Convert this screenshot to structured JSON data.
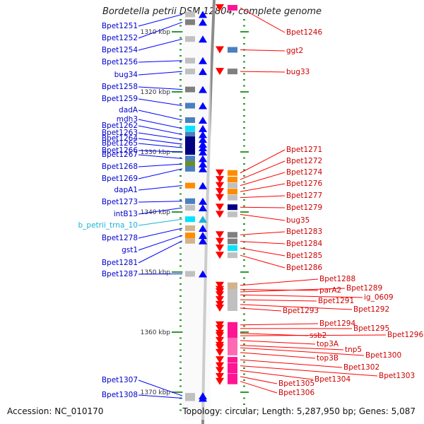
{
  "title": "Bordetella petrii DSM 12804, complete genome",
  "footer": {
    "accession": "Accession: NC_010170",
    "summary": "Topology: circular; Length: 5,287,950 bp; Genes: 5,087"
  },
  "colors": {
    "forward_gene": "#0000ff",
    "reverse_gene": "#ff0000",
    "trna": "#17b3d6",
    "backbone": "#8c8c8c",
    "tick_green": "#2e9a2e",
    "cog_palette": [
      "#7f7f7f",
      "#c0c0c0",
      "#4a7fc0",
      "#00e5ff",
      "#000080",
      "#ff8c00",
      "#d2b48c",
      "#ff1493",
      "#ff69b4",
      "#6b8e23"
    ]
  },
  "scale": {
    "unit_kbp": 10,
    "ticks": [
      {
        "label": "1310 kbp",
        "pos": 1310
      },
      {
        "label": "1320 kbp",
        "pos": 1320
      },
      {
        "label": "1330 kbp",
        "pos": 1330
      },
      {
        "label": "1340 kbp",
        "pos": 1340
      },
      {
        "label": "1350 kbp",
        "pos": 1350
      },
      {
        "label": "1360 kbp",
        "pos": 1360
      },
      {
        "label": "1370 kbp",
        "pos": 1370
      }
    ]
  },
  "left_genes": [
    {
      "name": "Bpet1251",
      "pos": 1307.1,
      "color": "blue",
      "cog": 1
    },
    {
      "name": "Bpet1252",
      "pos": 1308.4,
      "color": "blue",
      "cog": 0
    },
    {
      "name": "Bpet1254",
      "pos": 1311.2,
      "color": "blue",
      "cog": 1
    },
    {
      "name": "Bpet1256",
      "pos": 1314.8,
      "color": "blue",
      "cog": 1
    },
    {
      "name": "bug34",
      "pos": 1316.6,
      "color": "blue",
      "cog": 1
    },
    {
      "name": "Bpet1258",
      "pos": 1319.6,
      "color": "blue",
      "cog": 0
    },
    {
      "name": "Bpet1259",
      "pos": 1322.3,
      "color": "blue",
      "cog": 2
    },
    {
      "name": "dadA",
      "pos": 1324.7,
      "color": "blue",
      "cog": 2
    },
    {
      "name": "mdh3",
      "pos": 1326.1,
      "color": "blue",
      "cog": 3
    },
    {
      "name": "Bpet1262",
      "pos": 1327.1,
      "color": "blue",
      "cog": 2
    },
    {
      "name": "Bpet1263",
      "pos": 1327.9,
      "color": "blue",
      "cog": 4
    },
    {
      "name": "Bpet1264",
      "pos": 1328.7,
      "color": "blue",
      "cog": 4
    },
    {
      "name": "Bpet1265",
      "pos": 1329.3,
      "color": "blue",
      "cog": 4
    },
    {
      "name": "Bpet1266",
      "pos": 1330.0,
      "color": "blue",
      "cog": 4
    },
    {
      "name": "Bpet1267",
      "pos": 1331.1,
      "color": "blue",
      "cog": 2
    },
    {
      "name": "Bpet1268",
      "pos": 1332.0,
      "color": "blue",
      "cog": 9
    },
    {
      "name": "Bpet1269",
      "pos": 1332.8,
      "color": "blue",
      "cog": 2
    },
    {
      "name": "dapA1",
      "pos": 1335.6,
      "color": "blue",
      "cog": 5
    },
    {
      "name": "Bpet1273",
      "pos": 1338.2,
      "color": "blue",
      "cog": 2
    },
    {
      "name": "intB13",
      "pos": 1339.3,
      "color": "blue",
      "cog": 1
    },
    {
      "name": "b_petrii_trna_10",
      "pos": 1341.2,
      "color": "cyan",
      "cog": 3
    },
    {
      "name": "Bpet1278",
      "pos": 1342.7,
      "color": "blue",
      "cog": 6
    },
    {
      "name": "gst1",
      "pos": 1343.9,
      "color": "blue",
      "cog": 5
    },
    {
      "name": "Bpet1281",
      "pos": 1344.8,
      "color": "blue",
      "cog": 6
    },
    {
      "name": "Bpet1287",
      "pos": 1350.3,
      "color": "blue",
      "cog": 1
    },
    {
      "name": "Bpet1307",
      "pos": 1370.6,
      "color": "blue",
      "cog": 1
    },
    {
      "name": "Bpet1308",
      "pos": 1371.0,
      "color": "blue",
      "cog": 1
    }
  ],
  "right_genes": [
    {
      "name": "Bpet1246",
      "pos": 1306.0,
      "cog": 7
    },
    {
      "name": "ggt2",
      "pos": 1313.0,
      "cog": 2
    },
    {
      "name": "bug33",
      "pos": 1316.6,
      "cog": 0
    },
    {
      "name": "Bpet1271",
      "pos": 1333.5,
      "cog": 5
    },
    {
      "name": "Bpet1272",
      "pos": 1334.6,
      "cog": 5
    },
    {
      "name": "Bpet1274",
      "pos": 1335.6,
      "cog": 1
    },
    {
      "name": "Bpet1276",
      "pos": 1336.6,
      "cog": 5
    },
    {
      "name": "Bpet1277",
      "pos": 1337.6,
      "cog": 1
    },
    {
      "name": "Bpet1279",
      "pos": 1339.2,
      "cog": 4
    },
    {
      "name": "bug35",
      "pos": 1340.4,
      "cog": 1
    },
    {
      "name": "Bpet1283",
      "pos": 1343.8,
      "cog": 0
    },
    {
      "name": "Bpet1284",
      "pos": 1344.9,
      "cog": 0
    },
    {
      "name": "Bpet1285",
      "pos": 1346.0,
      "cog": 3
    },
    {
      "name": "Bpet1286",
      "pos": 1347.2,
      "cog": 1
    },
    {
      "name": "Bpet1288",
      "pos": 1352.2,
      "cog": 6
    },
    {
      "name": "parA2",
      "pos": 1352.9,
      "cog": 6
    },
    {
      "name": "Bpet1289",
      "pos": 1353.3,
      "cog": 1
    },
    {
      "name": "ig_0609",
      "pos": 1353.8,
      "cog": 1
    },
    {
      "name": "Bpet1291",
      "pos": 1354.6,
      "cog": 1
    },
    {
      "name": "Bpet1292",
      "pos": 1355.4,
      "cog": 1
    },
    {
      "name": "Bpet1293",
      "pos": 1356.0,
      "cog": 1
    },
    {
      "name": "Bpet1294",
      "pos": 1358.8,
      "cog": 7
    },
    {
      "name": "Bpet1295",
      "pos": 1359.4,
      "cog": 7
    },
    {
      "name": "ssb2",
      "pos": 1360.2,
      "cog": 7
    },
    {
      "name": "Bpet1296",
      "pos": 1360.6,
      "cog": 7
    },
    {
      "name": "top3A",
      "pos": 1361.4,
      "cog": 8
    },
    {
      "name": "tnp5",
      "pos": 1362.2,
      "cog": 8
    },
    {
      "name": "Bpet1300",
      "pos": 1362.6,
      "cog": 8
    },
    {
      "name": "top3B",
      "pos": 1363.4,
      "cog": 8
    },
    {
      "name": "Bpet1302",
      "pos": 1364.6,
      "cog": 7
    },
    {
      "name": "Bpet1303",
      "pos": 1365.6,
      "cog": 7
    },
    {
      "name": "Bpet1304",
      "pos": 1366.4,
      "cog": 7
    },
    {
      "name": "Bpet1305",
      "pos": 1367.4,
      "cog": 7
    },
    {
      "name": "Bpet1306",
      "pos": 1368.2,
      "cog": 7
    }
  ]
}
